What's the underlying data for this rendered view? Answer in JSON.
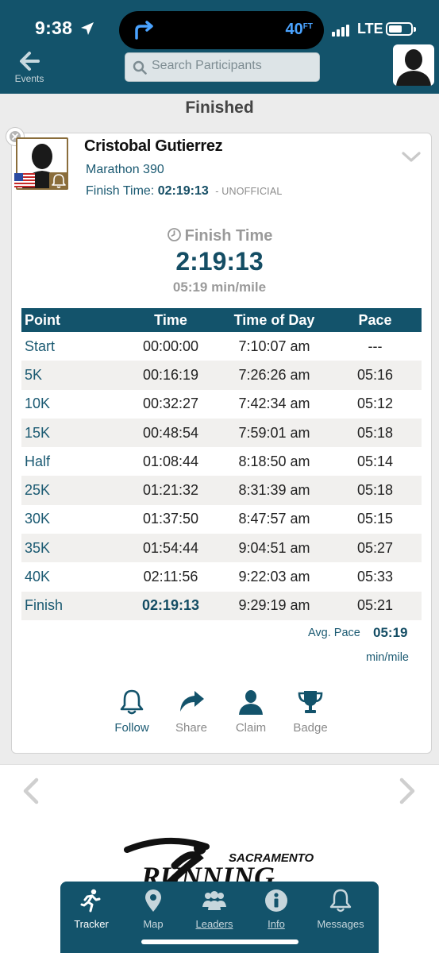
{
  "status_bar": {
    "time": "9:38",
    "island_distance": "40",
    "island_unit": "FT",
    "network": "LTE"
  },
  "header": {
    "back_label": "Events",
    "search_placeholder": "Search Participants"
  },
  "section_title": "Finished",
  "participant": {
    "name": "Cristobal Gutierrez",
    "race": "Marathon 390",
    "finish_time_label": "Finish Time:",
    "finish_time": "02:19:13",
    "status": "- UNOFFICIAL"
  },
  "finish_summary": {
    "label": "Finish Time",
    "value": "2:19:13",
    "pace": "05:19 min/mile"
  },
  "splits": {
    "headers": [
      "Point",
      "Time",
      "Time of Day",
      "Pace"
    ],
    "rows": [
      [
        "Start",
        "00:00:00",
        "7:10:07 am",
        "---"
      ],
      [
        "5K",
        "00:16:19",
        "7:26:26 am",
        "05:16"
      ],
      [
        "10K",
        "00:32:27",
        "7:42:34 am",
        "05:12"
      ],
      [
        "15K",
        "00:48:54",
        "7:59:01 am",
        "05:18"
      ],
      [
        "Half",
        "01:08:44",
        "8:18:50 am",
        "05:14"
      ],
      [
        "25K",
        "01:21:32",
        "8:31:39 am",
        "05:18"
      ],
      [
        "30K",
        "01:37:50",
        "8:47:57 am",
        "05:15"
      ],
      [
        "35K",
        "01:54:44",
        "9:04:51 am",
        "05:27"
      ],
      [
        "40K",
        "02:11:56",
        "9:22:03 am",
        "05:33"
      ],
      [
        "Finish",
        "02:19:13",
        "9:29:19 am",
        "05:21"
      ]
    ]
  },
  "avg_pace": {
    "label": "Avg. Pace",
    "value": "05:19",
    "unit": "min/mile"
  },
  "actions": {
    "follow": "Follow",
    "share": "Share",
    "claim": "Claim",
    "badge": "Badge"
  },
  "logo": {
    "top": "SACRAMENTO",
    "main": "RUNNING"
  },
  "tabs": {
    "tracker": "Tracker",
    "map": "Map",
    "leaders": "Leaders",
    "info": "Info",
    "messages": "Messages"
  },
  "colors": {
    "primary": "#13536b",
    "text_accent": "#1b5a72",
    "badge_gold": "#8a6d3b"
  },
  "icons": {
    "back": "arrow-left-icon",
    "search": "search-icon",
    "profile": "user-silhouette-icon",
    "clock": "clock-icon",
    "follow": "bell-icon",
    "share": "share-arrow-icon",
    "claim": "person-icon",
    "badge": "trophy-icon",
    "tracker": "runner-icon",
    "map": "map-pin-icon",
    "leaders": "group-icon",
    "info": "info-icon",
    "messages": "bell-icon"
  }
}
